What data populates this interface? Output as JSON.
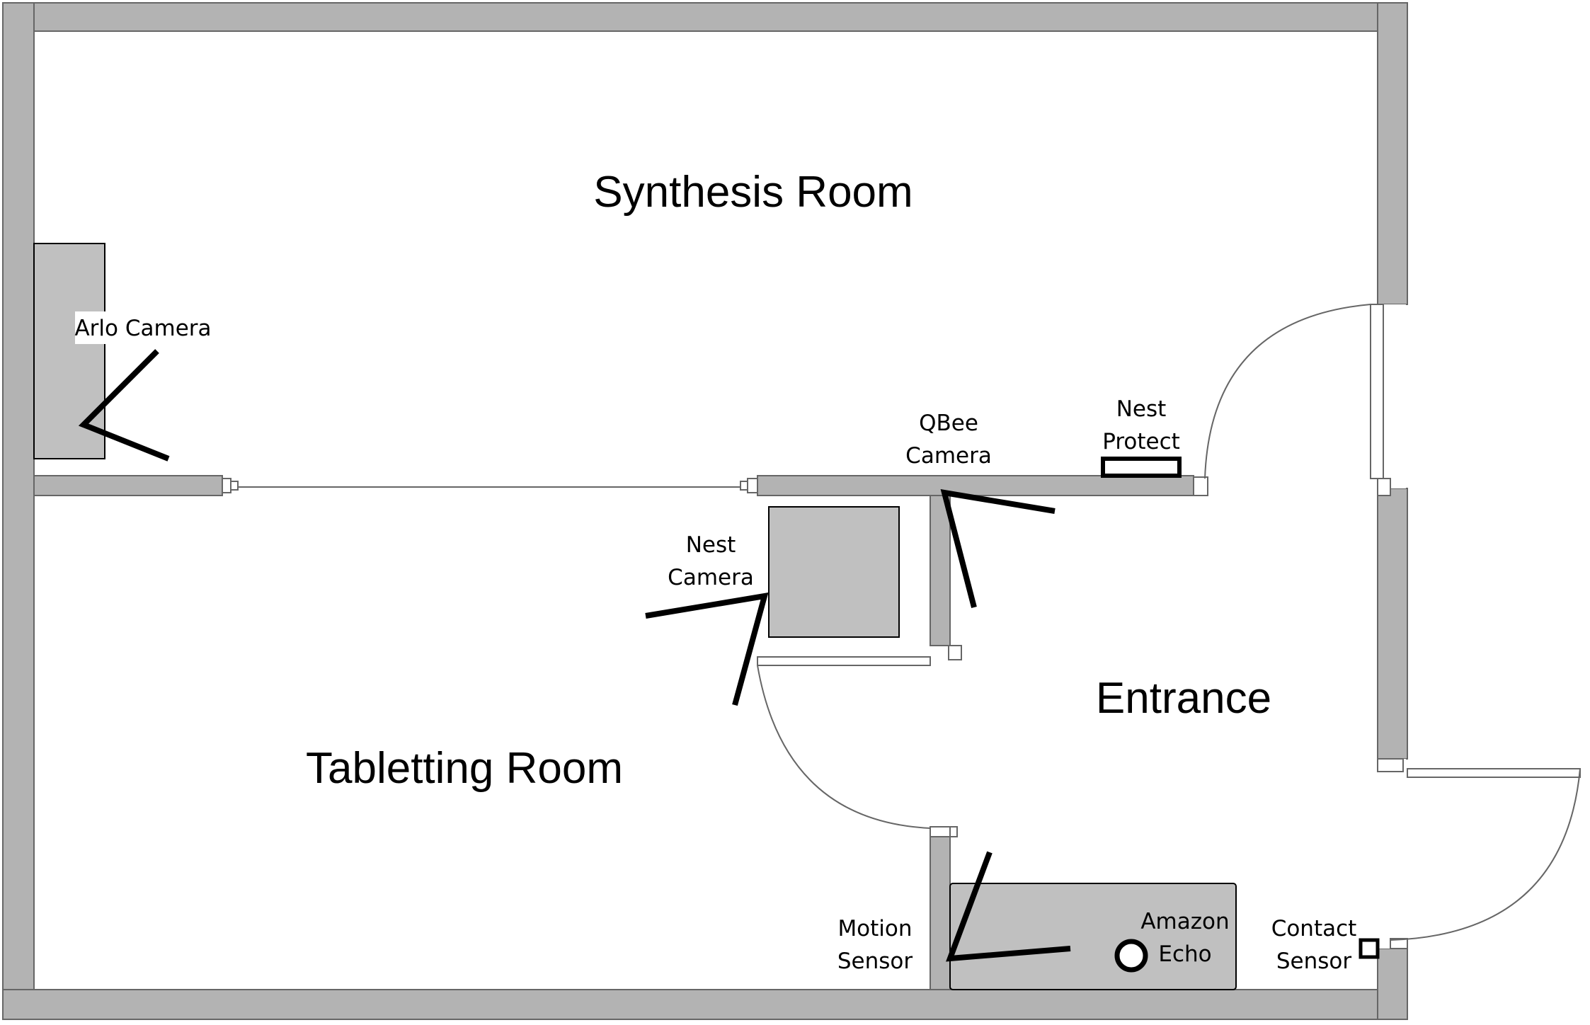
{
  "rooms": {
    "synthesis": "Synthesis Room",
    "tabletting": "Tabletting Room",
    "entrance": "Entrance"
  },
  "devices": {
    "arlo_camera": "Arlo Camera",
    "qbee_camera": {
      "line1": "QBee",
      "line2": "Camera"
    },
    "nest_protect": {
      "line1": "Nest",
      "line2": "Protect"
    },
    "nest_camera": {
      "line1": "Nest",
      "line2": "Camera"
    },
    "motion_sensor": {
      "line1": "Motion",
      "line2": "Sensor"
    },
    "amazon_echo": {
      "line1": "Amazon",
      "line2": "Echo"
    },
    "contact_sensor": {
      "line1": "Contact",
      "line2": "Sensor"
    }
  },
  "colors": {
    "wall": "#b3b3b3",
    "furniture": "#c0c0c0",
    "ink": "#000000"
  }
}
